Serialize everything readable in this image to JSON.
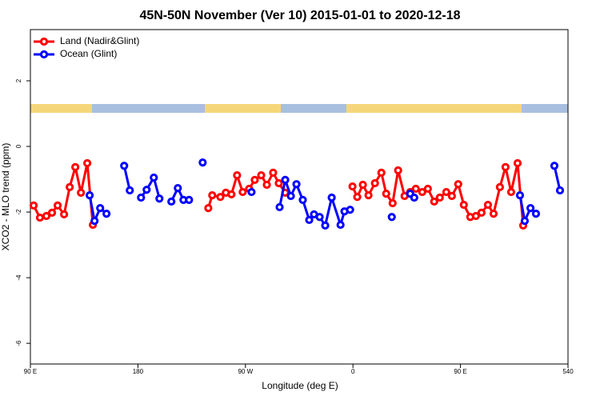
{
  "chart_data": {
    "type": "line",
    "title": "45N-50N November (Ver 10)   2015-01-01 to 2020-12-18",
    "x_label": "Longitude (deg E)",
    "y_label": "XCO2 - MLO trend (ppm)",
    "xlim": [
      90,
      540
    ],
    "ylim": [
      -6.63,
      3.56
    ],
    "xticks": [
      {
        "value": 90,
        "label": "90 E"
      },
      180,
      {
        "value": 270,
        "label": "90 W"
      },
      {
        "value": 360,
        "label": "0"
      },
      {
        "value": 450,
        "label": "90 E"
      },
      540
    ],
    "yticks": [
      2,
      0,
      -2,
      -4,
      -6
    ],
    "legend": "topleft",
    "series": [
      {
        "name": "Land (Nadir&Glint)",
        "color": "#ff0000",
        "x": [
          92.7,
          98.0,
          103.4,
          108.1,
          112.8,
          118.2,
          122.9,
          127.6,
          132.3,
          137.6,
          142.3,
          null,
          238.9,
          242.2,
          249.0,
          253.6,
          258.3,
          263.0,
          267.7,
          273.1,
          277.8,
          283.2,
          287.9,
          293.2,
          297.9,
          303.3,
          null,
          359.6,
          363.6,
          368.3,
          373.0,
          378.4,
          383.8,
          387.8,
          393.2,
          397.8,
          403.2,
          407.9,
          412.6,
          418.0,
          422.7,
          428.0,
          432.7,
          438.1,
          442.8,
          448.1,
          452.8,
          458.2,
          462.9,
          467.6,
          473.0,
          477.7,
          483.0,
          487.7,
          492.4,
          497.8,
          502.5
        ],
        "values": [
          -1.8,
          -2.17,
          -2.12,
          -2.02,
          -1.8,
          -2.07,
          -1.24,
          -0.63,
          -1.41,
          -0.51,
          -2.39,
          null,
          -1.88,
          -1.49,
          -1.54,
          -1.41,
          -1.46,
          -0.88,
          -1.39,
          -1.29,
          -1.02,
          -0.88,
          -1.17,
          -0.8,
          -1.12,
          -1.41,
          null,
          -1.22,
          -1.54,
          -1.17,
          -1.49,
          -1.12,
          -0.8,
          -1.44,
          -1.73,
          -0.73,
          -1.51,
          -1.39,
          -1.29,
          -1.39,
          -1.29,
          -1.68,
          -1.56,
          -1.39,
          -1.51,
          -1.15,
          -1.78,
          -2.15,
          -2.12,
          -2.02,
          -1.78,
          -2.05,
          -1.24,
          -0.63,
          -1.39,
          -0.51,
          -2.41
        ]
      },
      {
        "name": "Ocean (Glint)",
        "color": "#0000ff",
        "x": [
          139.6,
          143.7,
          148.4,
          153.7,
          null,
          168.5,
          173.2,
          null,
          182.6,
          187.3,
          193.3,
          198.0,
          null,
          208.0,
          213.4,
          218.1,
          222.8,
          null,
          234.2,
          null,
          275.1,
          null,
          298.6,
          303.3,
          308.0,
          312.7,
          318.0,
          323.4,
          327.4,
          332.1,
          336.8,
          342.2,
          349.6,
          352.9,
          357.6,
          null,
          392.5,
          null,
          407.9,
          411.3,
          null,
          499.8,
          503.8,
          508.6,
          513.2,
          null,
          528.6,
          533.3
        ],
        "values": [
          -1.49,
          -2.27,
          -1.88,
          -2.05,
          null,
          -0.59,
          -1.34,
          null,
          -1.56,
          -1.32,
          -0.95,
          -1.59,
          null,
          -1.68,
          -1.27,
          -1.63,
          -1.63,
          null,
          -0.49,
          null,
          -1.39,
          null,
          -1.85,
          -1.02,
          -1.51,
          -1.15,
          -1.63,
          -2.24,
          -2.07,
          -2.15,
          -2.41,
          -1.56,
          -2.39,
          -1.98,
          -1.93,
          null,
          -2.15,
          null,
          -1.44,
          -1.56,
          null,
          -1.49,
          -2.27,
          -1.88,
          -2.05,
          null,
          -0.59,
          -1.34
        ]
      }
    ]
  }
}
